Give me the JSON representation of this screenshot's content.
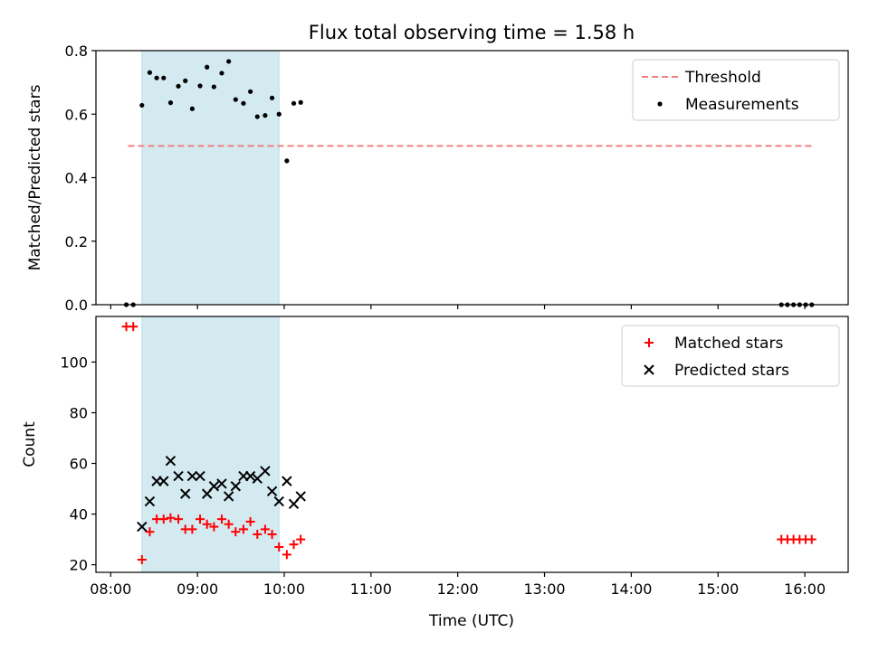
{
  "chart_data": {
    "type": "scatter",
    "title": "Flux total observing time = 1.58 h",
    "xlabel": "Time (UTC)",
    "x_unit": "hours (UTC)",
    "xlim": [
      7.83,
      16.5
    ],
    "x_ticks": [
      {
        "value": 8,
        "label": "08:00"
      },
      {
        "value": 9,
        "label": "09:00"
      },
      {
        "value": 10,
        "label": "10:00"
      },
      {
        "value": 11,
        "label": "11:00"
      },
      {
        "value": 12,
        "label": "12:00"
      },
      {
        "value": 13,
        "label": "13:00"
      },
      {
        "value": 14,
        "label": "14:00"
      },
      {
        "value": 15,
        "label": "15:00"
      },
      {
        "value": 16,
        "label": "16:00"
      }
    ],
    "observing_window": {
      "start": 8.36,
      "end": 9.94,
      "color": "#d3eaf1"
    },
    "panels": [
      {
        "ylabel": "Matched/Predicted stars",
        "ylim": [
          0,
          0.8
        ],
        "y_ticks": [
          {
            "value": 0.0,
            "label": "0.0"
          },
          {
            "value": 0.2,
            "label": "0.2"
          },
          {
            "value": 0.4,
            "label": "0.4"
          },
          {
            "value": 0.6,
            "label": "0.6"
          },
          {
            "value": 0.8,
            "label": "0.8"
          }
        ],
        "legend": {
          "position": "upper-right",
          "entries": [
            "Threshold",
            "Measurements"
          ]
        },
        "threshold": {
          "name": "Threshold",
          "value": 0.5,
          "x_range": [
            8.2,
            16.1
          ],
          "color": "#f08080"
        },
        "series": [
          {
            "name": "Measurements",
            "marker": "dot",
            "color": "#000000",
            "points": [
              [
                8.18,
                0.0
              ],
              [
                8.26,
                0.0
              ],
              [
                8.36,
                0.628
              ],
              [
                8.45,
                0.731
              ],
              [
                8.53,
                0.714
              ],
              [
                8.61,
                0.714
              ],
              [
                8.69,
                0.636
              ],
              [
                8.78,
                0.688
              ],
              [
                8.86,
                0.705
              ],
              [
                8.94,
                0.617
              ],
              [
                9.03,
                0.689
              ],
              [
                9.11,
                0.748
              ],
              [
                9.19,
                0.686
              ],
              [
                9.28,
                0.729
              ],
              [
                9.36,
                0.766
              ],
              [
                9.44,
                0.646
              ],
              [
                9.53,
                0.634
              ],
              [
                9.61,
                0.671
              ],
              [
                9.69,
                0.592
              ],
              [
                9.78,
                0.596
              ],
              [
                9.86,
                0.651
              ],
              [
                9.94,
                0.6
              ],
              [
                10.03,
                0.453
              ],
              [
                10.11,
                0.634
              ],
              [
                10.19,
                0.637
              ],
              [
                15.73,
                0.0
              ],
              [
                15.8,
                0.0
              ],
              [
                15.87,
                0.0
              ],
              [
                15.94,
                0.0
              ],
              [
                16.01,
                0.0
              ],
              [
                16.08,
                0.0
              ]
            ]
          }
        ]
      },
      {
        "ylabel": "Count",
        "ylim": [
          17,
          118
        ],
        "y_ticks": [
          {
            "value": 20,
            "label": "20"
          },
          {
            "value": 40,
            "label": "40"
          },
          {
            "value": 60,
            "label": "60"
          },
          {
            "value": 80,
            "label": "80"
          },
          {
            "value": 100,
            "label": "100"
          }
        ],
        "legend": {
          "position": "upper-right",
          "entries": [
            "Matched stars",
            "Predicted stars"
          ]
        },
        "series": [
          {
            "name": "Matched stars",
            "marker": "plus",
            "color": "#ff0000",
            "points": [
              [
                8.18,
                114
              ],
              [
                8.26,
                114
              ],
              [
                8.36,
                22
              ],
              [
                8.45,
                33
              ],
              [
                8.53,
                38
              ],
              [
                8.61,
                38
              ],
              [
                8.69,
                38.5
              ],
              [
                8.78,
                38
              ],
              [
                8.86,
                34
              ],
              [
                8.94,
                34
              ],
              [
                9.03,
                38
              ],
              [
                9.11,
                36
              ],
              [
                9.19,
                35
              ],
              [
                9.28,
                38
              ],
              [
                9.36,
                36
              ],
              [
                9.44,
                33
              ],
              [
                9.53,
                34
              ],
              [
                9.61,
                37
              ],
              [
                9.69,
                32
              ],
              [
                9.78,
                34
              ],
              [
                9.86,
                32
              ],
              [
                9.94,
                27
              ],
              [
                10.03,
                24
              ],
              [
                10.11,
                28
              ],
              [
                10.19,
                30
              ],
              [
                15.73,
                30
              ],
              [
                15.8,
                30
              ],
              [
                15.87,
                30
              ],
              [
                15.94,
                30
              ],
              [
                16.01,
                30
              ],
              [
                16.08,
                30
              ]
            ]
          },
          {
            "name": "Predicted stars",
            "marker": "x",
            "color": "#000000",
            "points": [
              [
                8.36,
                35
              ],
              [
                8.45,
                45
              ],
              [
                8.53,
                53
              ],
              [
                8.61,
                53
              ],
              [
                8.69,
                61
              ],
              [
                8.78,
                55
              ],
              [
                8.86,
                48
              ],
              [
                8.94,
                55
              ],
              [
                9.03,
                55
              ],
              [
                9.11,
                48
              ],
              [
                9.19,
                51
              ],
              [
                9.28,
                52
              ],
              [
                9.36,
                47
              ],
              [
                9.44,
                51
              ],
              [
                9.53,
                55
              ],
              [
                9.61,
                55
              ],
              [
                9.69,
                54
              ],
              [
                9.78,
                57
              ],
              [
                9.86,
                49
              ],
              [
                9.94,
                45
              ],
              [
                10.03,
                53
              ],
              [
                10.11,
                44
              ],
              [
                10.19,
                47
              ]
            ]
          }
        ]
      }
    ]
  }
}
